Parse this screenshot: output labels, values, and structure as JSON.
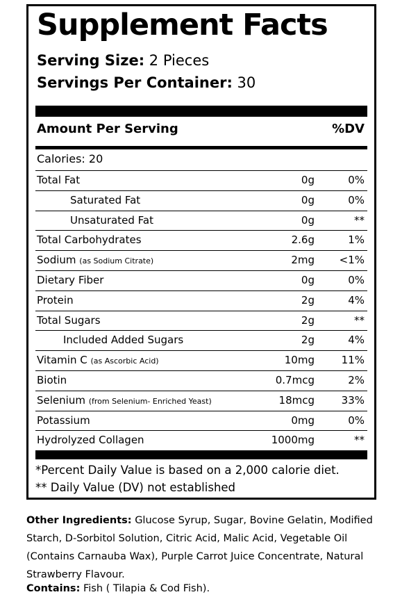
{
  "title": "Supplement Facts",
  "serving_size": {
    "label": "Serving Size:",
    "value": "2 Pieces"
  },
  "servings_per_container": {
    "label": "Servings Per Container:",
    "value": "30"
  },
  "header": {
    "amount_per_serving": "Amount Per Serving",
    "dv": "%DV"
  },
  "calories": "Calories: 20",
  "rows": [
    {
      "name": "Total Fat",
      "note": "",
      "amount": "0g",
      "dv": "0%"
    },
    {
      "name": "Saturated Fat",
      "note": "",
      "amount": "0g",
      "dv": "0%"
    },
    {
      "name": "Unsaturated Fat",
      "note": "",
      "amount": "0g",
      "dv": "**"
    },
    {
      "name": "Total Carbohydrates",
      "note": "",
      "amount": "2.6g",
      "dv": "1%"
    },
    {
      "name": "Sodium",
      "note": "(as Sodium Citrate)",
      "amount": "2mg",
      "dv": "<1%"
    },
    {
      "name": "Dietary Fiber",
      "note": "",
      "amount": "0g",
      "dv": "0%"
    },
    {
      "name": "Protein",
      "note": "",
      "amount": "2g",
      "dv": "4%"
    },
    {
      "name": "Total Sugars",
      "note": "",
      "amount": "2g",
      "dv": "**"
    },
    {
      "name": "Included Added Sugars",
      "note": "",
      "amount": "2g",
      "dv": "4%"
    },
    {
      "name": "Vitamin C",
      "note": "(as Ascorbic Acid)",
      "amount": "10mg",
      "dv": "11%"
    },
    {
      "name": "Biotin",
      "note": "",
      "amount": "0.7mcg",
      "dv": "2%"
    },
    {
      "name": "Selenium",
      "note": "(from Selenium- Enriched Yeast)",
      "amount": "18mcg",
      "dv": "33%"
    },
    {
      "name": "Potassium",
      "note": "",
      "amount": "0mg",
      "dv": "0%"
    },
    {
      "name": "Hydrolyzed Collagen",
      "note": "",
      "amount": "1000mg",
      "dv": "**"
    }
  ],
  "footnotes": {
    "percent": "*Percent Daily Value is based on a 2,000 calorie diet.",
    "not_established": "** Daily Value (DV) not established"
  },
  "other_ingredients": {
    "label": "Other Ingredients:",
    "text": "Glucose Syrup, Sugar, Bovine Gelatin, Modified Starch, D-Sorbitol Solution, Citric Acid, Malic Acid, Vegetable Oil (Contains Carnauba Wax), Purple Carrot Juice Concentrate, Natural Strawberry Flavour."
  },
  "contains": {
    "label": "Contains:",
    "text": "Fish ( Tilapia & Cod Fish)."
  }
}
